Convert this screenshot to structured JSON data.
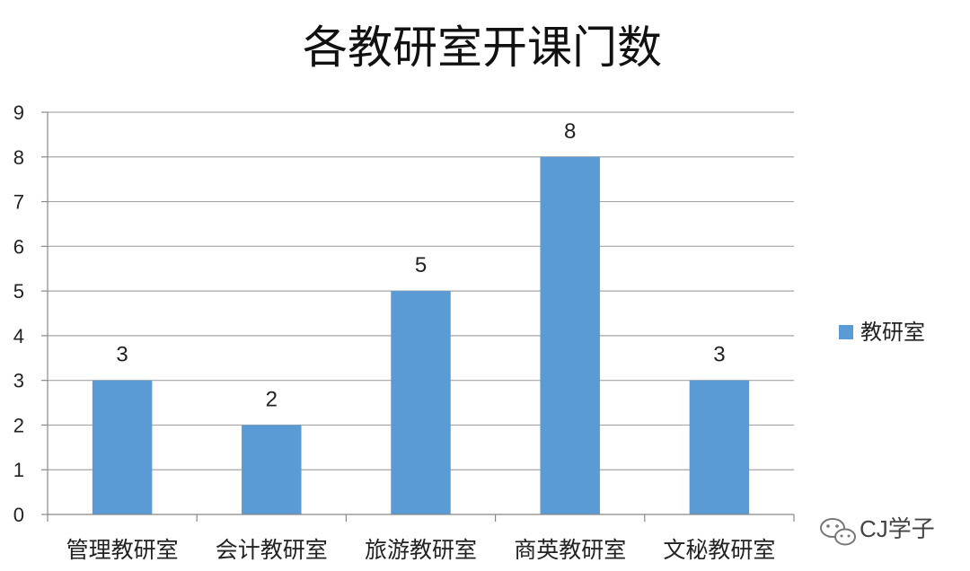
{
  "chart_data": {
    "type": "bar",
    "title": "各教研室开课门数",
    "categories": [
      "管理教研室",
      "会计教研室",
      "旅游教研室",
      "商英教研室",
      "文秘教研室"
    ],
    "series": [
      {
        "name": "教研室",
        "values": [
          3,
          2,
          5,
          8,
          3
        ],
        "color": "#5B9BD5"
      }
    ],
    "ylim": [
      0,
      9
    ],
    "yticks": [
      "0",
      "1",
      "2",
      "3",
      "4",
      "5",
      "6",
      "7",
      "8",
      "9"
    ],
    "xlabel": "",
    "ylabel": "",
    "grid": true,
    "legend_position": "right",
    "data_labels": true
  },
  "watermark": {
    "text": "CJ学子",
    "icon": "wechat-icon"
  }
}
